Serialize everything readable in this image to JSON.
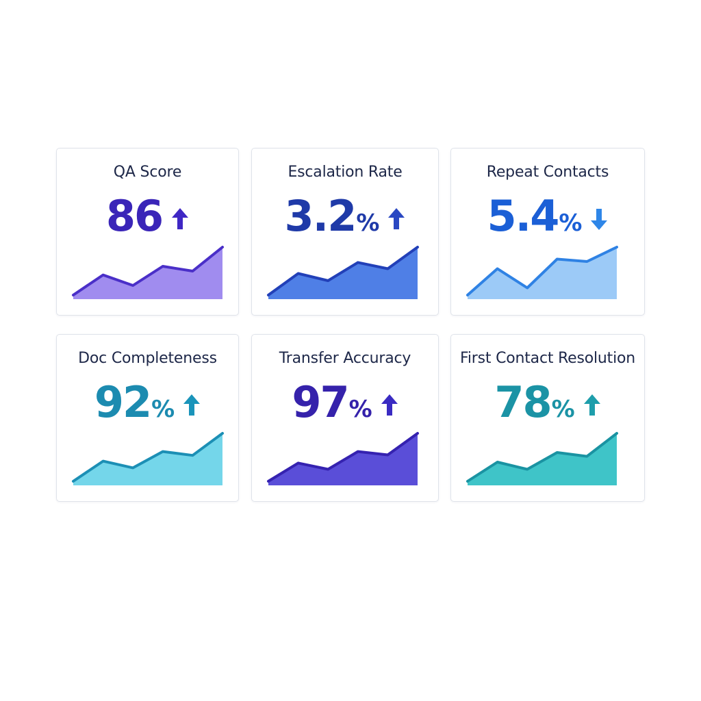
{
  "dashboard": {
    "cards": [
      {
        "title": "QA Score",
        "value": "86",
        "unit": "",
        "trend": "up",
        "value_color": "#3a25b8",
        "arrow_color": "#3f27c4",
        "line_color": "#4a2fc8",
        "fill_color": "#a08cef",
        "trend_values": [
          0,
          0.42,
          0.2,
          0.6,
          0.5,
          1.0
        ]
      },
      {
        "title": "Escalation Rate",
        "value": "3.2",
        "unit": "%",
        "trend": "up",
        "value_color": "#1f3aa8",
        "arrow_color": "#2a48c2",
        "line_color": "#2240b8",
        "fill_color": "#4f7fe6",
        "trend_values": [
          0,
          0.45,
          0.3,
          0.68,
          0.55,
          1.0
        ]
      },
      {
        "title": "Repeat Contacts",
        "value": "5.4",
        "unit": "%",
        "trend": "down",
        "value_color": "#1b5fd6",
        "arrow_color": "#2e86e8",
        "line_color": "#2f82e4",
        "fill_color": "#9ccaf7",
        "trend_values": [
          0,
          0.55,
          0.15,
          0.75,
          0.7,
          1.0
        ]
      },
      {
        "title": "Doc Completeness",
        "value": "92",
        "unit": "%",
        "trend": "up",
        "value_color": "#1c8bb0",
        "arrow_color": "#1a94ba",
        "line_color": "#1c8fb5",
        "fill_color": "#74d6ea",
        "trend_values": [
          0,
          0.42,
          0.28,
          0.62,
          0.54,
          1.0
        ]
      },
      {
        "title": "Transfer Accuracy",
        "value": "97",
        "unit": "%",
        "trend": "up",
        "value_color": "#3522ab",
        "arrow_color": "#3a2bc2",
        "line_color": "#3522b0",
        "fill_color": "#5a4ed8",
        "trend_values": [
          0,
          0.38,
          0.25,
          0.62,
          0.55,
          1.0
        ]
      },
      {
        "title": "First Contact Resolution",
        "value": "78",
        "unit": "%",
        "trend": "up",
        "value_color": "#1b93a5",
        "arrow_color": "#1e9eab",
        "line_color": "#1a93a2",
        "fill_color": "#3fc4c8",
        "trend_values": [
          0,
          0.4,
          0.25,
          0.6,
          0.52,
          1.0
        ]
      }
    ]
  }
}
